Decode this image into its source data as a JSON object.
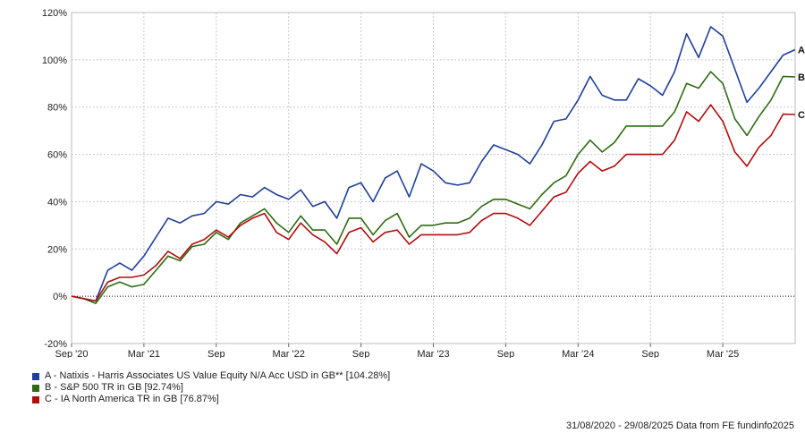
{
  "chart_data": {
    "type": "line",
    "ylim": [
      -20,
      120
    ],
    "yticks": [
      -20,
      0,
      20,
      40,
      60,
      80,
      100,
      120
    ],
    "ytick_labels": [
      "-20%",
      "0%",
      "20%",
      "40%",
      "60%",
      "80%",
      "100%",
      "120%"
    ],
    "x_range": [
      0,
      60
    ],
    "xticks": [
      {
        "label": "Sep '20",
        "at": 0
      },
      {
        "label": "Mar '21",
        "at": 6
      },
      {
        "label": "Sep",
        "at": 12
      },
      {
        "label": "Mar '22",
        "at": 18
      },
      {
        "label": "Sep",
        "at": 24
      },
      {
        "label": "Mar '23",
        "at": 30
      },
      {
        "label": "Sep",
        "at": 36
      },
      {
        "label": "Mar '24",
        "at": 42
      },
      {
        "label": "Sep",
        "at": 48
      },
      {
        "label": "Mar '25",
        "at": 54
      }
    ],
    "grid": true,
    "zero_line": "dotted",
    "series": [
      {
        "name": "A - Natixis - Harris Associates US Value Equity N/A Acc USD in GB** [104.28%]",
        "end_label": "A",
        "color": "#1f3f9a",
        "values": [
          0,
          -1,
          -2,
          11,
          14,
          11,
          17,
          25,
          33,
          31,
          34,
          35,
          40,
          39,
          43,
          42,
          46,
          43,
          41,
          45,
          38,
          40,
          33,
          46,
          48,
          40,
          50,
          53,
          42,
          56,
          53,
          48,
          47,
          48,
          57,
          64,
          62,
          60,
          56,
          64,
          74,
          75,
          83,
          93,
          85,
          83,
          83,
          92,
          89,
          85,
          95,
          111,
          101,
          114,
          110,
          96,
          82,
          88,
          95,
          102,
          104.28
        ]
      },
      {
        "name": "B - S&P 500 TR in GB [92.74%]",
        "end_label": "B",
        "color": "#2e6b12",
        "values": [
          0,
          -1,
          -3,
          4,
          6,
          4,
          5,
          11,
          17,
          15,
          21,
          22,
          27,
          24,
          31,
          34,
          37,
          31,
          27,
          34,
          28,
          28,
          22,
          33,
          33,
          26,
          32,
          35,
          25,
          30,
          30,
          31,
          31,
          33,
          38,
          41,
          41,
          39,
          37,
          43,
          48,
          51,
          60,
          66,
          61,
          65,
          72,
          72,
          72,
          72,
          78,
          90,
          88,
          95,
          90,
          75,
          68,
          76,
          83,
          93,
          92.74
        ]
      },
      {
        "name": "C - IA North America TR in GB [76.87%]",
        "end_label": "C",
        "color": "#b00d0d",
        "values": [
          0,
          -1,
          -2,
          6,
          8,
          8,
          9,
          13,
          19,
          16,
          22,
          24,
          28,
          25,
          30,
          33,
          35,
          27,
          24,
          31,
          26,
          23,
          18,
          27,
          29,
          23,
          27,
          28,
          22,
          26,
          26,
          26,
          26,
          27,
          32,
          35,
          35,
          33,
          30,
          36,
          42,
          44,
          52,
          57,
          53,
          55,
          60,
          60,
          60,
          60,
          66,
          78,
          74,
          81,
          74,
          61,
          55,
          63,
          68,
          77,
          76.87
        ]
      }
    ],
    "footer": "31/08/2020 - 29/08/2025 Data from FE fundinfo2025"
  }
}
